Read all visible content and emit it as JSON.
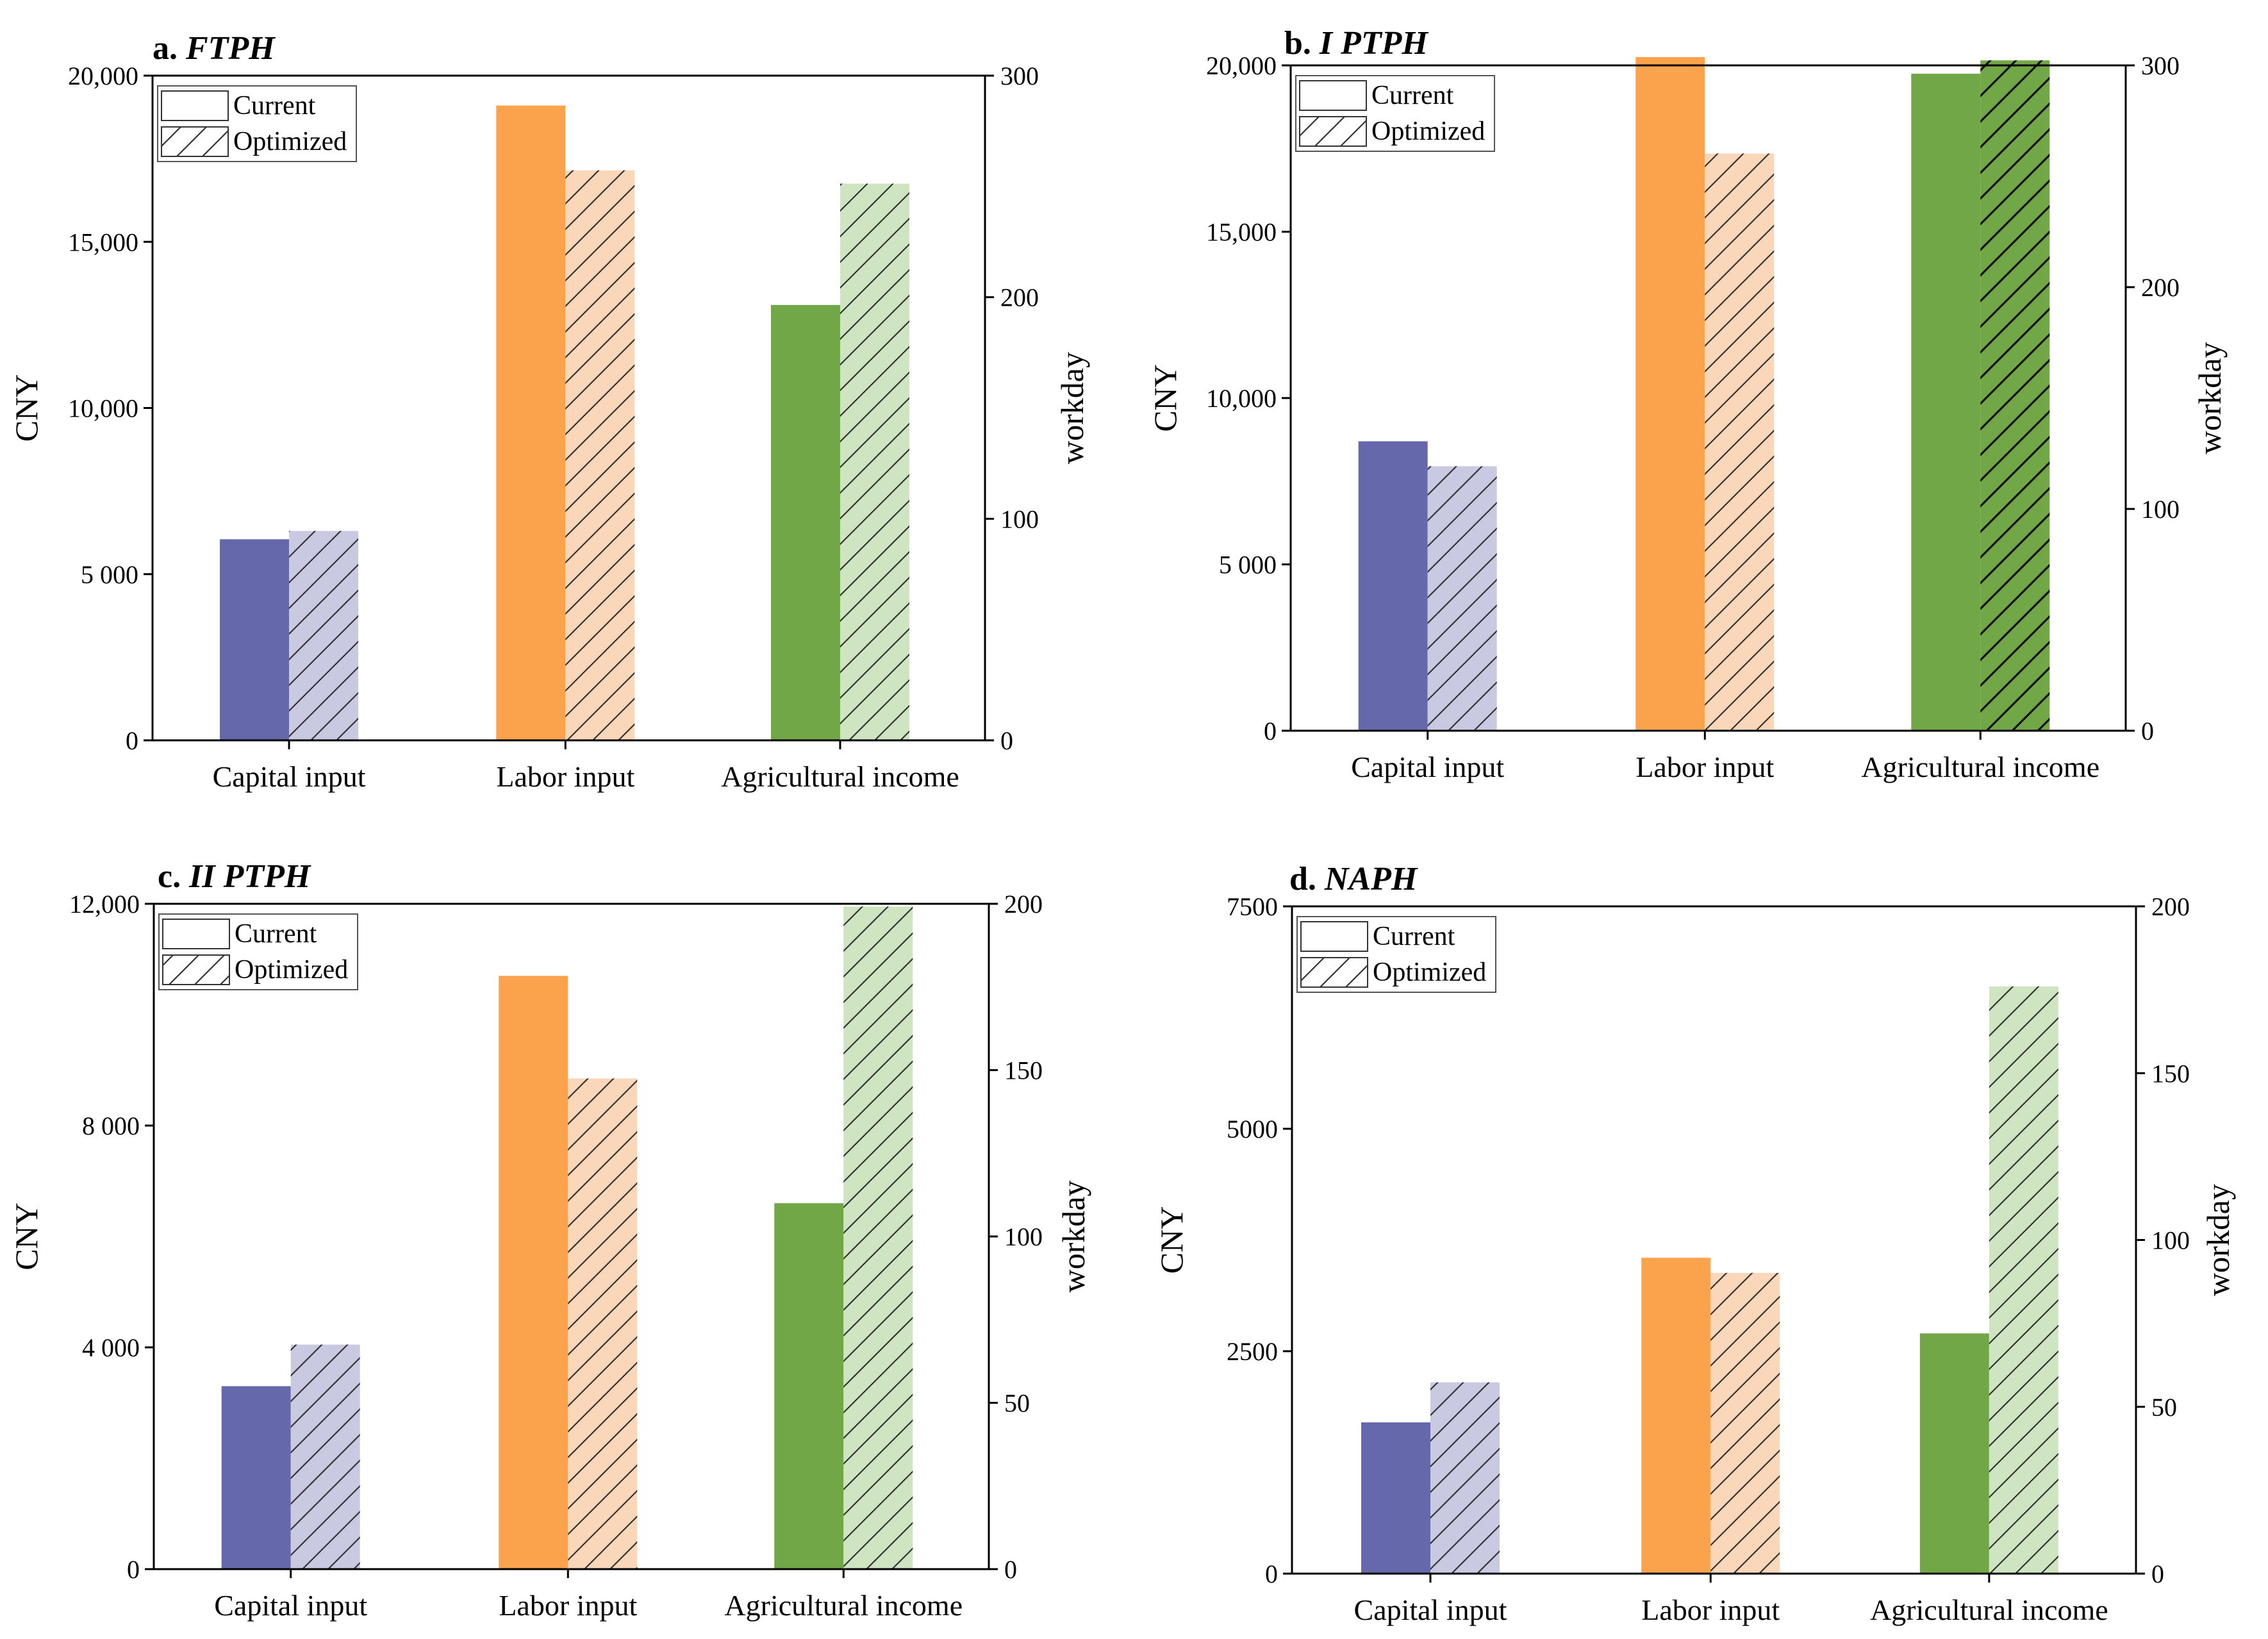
{
  "chart_data": [
    {
      "type": "bar",
      "panel_label": "a.",
      "title": "FTPH",
      "categories": [
        "Capital input",
        "Labor input",
        "Agricultural income"
      ],
      "series": [
        {
          "name": "Current",
          "values": [
            6050,
            19100,
            13100
          ]
        },
        {
          "name": "Optimized",
          "values": [
            6300,
            17150,
            16750
          ]
        }
      ],
      "ylabel": "CNY",
      "y2label": "workday",
      "ylim": [
        0,
        20000
      ],
      "y2lim": [
        0,
        300
      ],
      "yticks": [
        0,
        5000,
        10000,
        15000,
        20000
      ],
      "ytick_labels": [
        "0",
        "5 000",
        "10,000",
        "15,000",
        "20,000"
      ],
      "y2ticks": [
        0,
        100,
        200,
        300
      ],
      "y2tick_labels": [
        "0",
        "100",
        "200",
        "300"
      ],
      "legend": [
        "Current",
        "Optimized"
      ],
      "legend_position": "top-left"
    },
    {
      "type": "bar",
      "panel_label": "b.",
      "title": "I PTPH",
      "categories": [
        "Capital input",
        "Labor input",
        "Agricultural income"
      ],
      "series": [
        {
          "name": "Current",
          "values": [
            8700,
            20250,
            19750
          ]
        },
        {
          "name": "Optimized",
          "values": [
            7950,
            17350,
            20150
          ]
        }
      ],
      "ylabel": "CNY",
      "y2label": "workday",
      "ylim": [
        0,
        20000
      ],
      "y2lim": [
        0,
        300
      ],
      "yticks": [
        0,
        5000,
        10000,
        15000,
        20000
      ],
      "ytick_labels": [
        "0",
        "5 000",
        "10,000",
        "15,000",
        "20,000"
      ],
      "y2ticks": [
        0,
        100,
        200,
        300
      ],
      "y2tick_labels": [
        "0",
        "100",
        "200",
        "300"
      ],
      "legend": [
        "Current",
        "Optimized"
      ],
      "legend_position": "top-left"
    },
    {
      "type": "bar",
      "panel_label": "c.",
      "title": "II PTPH",
      "categories": [
        "Capital input",
        "Labor input",
        "Agricultural income"
      ],
      "series": [
        {
          "name": "Current",
          "values": [
            3300,
            10700,
            6600
          ]
        },
        {
          "name": "Optimized",
          "values": [
            4050,
            8850,
            11950
          ]
        }
      ],
      "ylabel": "CNY",
      "y2label": "workday",
      "ylim": [
        0,
        12000
      ],
      "y2lim": [
        0,
        200
      ],
      "yticks": [
        0,
        4000,
        8000,
        12000
      ],
      "ytick_labels": [
        "0",
        "4 000",
        "8 000",
        "12,000"
      ],
      "y2ticks": [
        0,
        50,
        100,
        150,
        200
      ],
      "y2tick_labels": [
        "0",
        "50",
        "100",
        "150",
        "200"
      ],
      "legend": [
        "Current",
        "Optimized"
      ],
      "legend_position": "top-left"
    },
    {
      "type": "bar",
      "panel_label": "d.",
      "title": "NAPH",
      "categories": [
        "Capital input",
        "Labor input",
        "Agricultural income"
      ],
      "series": [
        {
          "name": "Current",
          "values": [
            1700,
            3550,
            2700
          ]
        },
        {
          "name": "Optimized",
          "values": [
            2150,
            3380,
            6600
          ]
        }
      ],
      "ylabel": "CNY",
      "y2label": "workday",
      "ylim": [
        0,
        7500
      ],
      "y2lim": [
        0,
        200
      ],
      "yticks": [
        0,
        2500,
        5000,
        7500
      ],
      "ytick_labels": [
        "0",
        "2500",
        "5000",
        "7500"
      ],
      "y2ticks": [
        0,
        50,
        100,
        150,
        200
      ],
      "y2tick_labels": [
        "0",
        "50",
        "100",
        "150",
        "200"
      ],
      "legend": [
        "Current",
        "Optimized"
      ],
      "legend_position": "top-left"
    }
  ],
  "colors": {
    "capital_current": "#6568ab",
    "capital_optimized": "#c9cae2",
    "labor_current": "#fba24c",
    "labor_optimized": "#fbd7ba",
    "income_current": "#72a748",
    "income_optimized": "#cfe5c2",
    "income_optimized_b": "#72a748"
  }
}
